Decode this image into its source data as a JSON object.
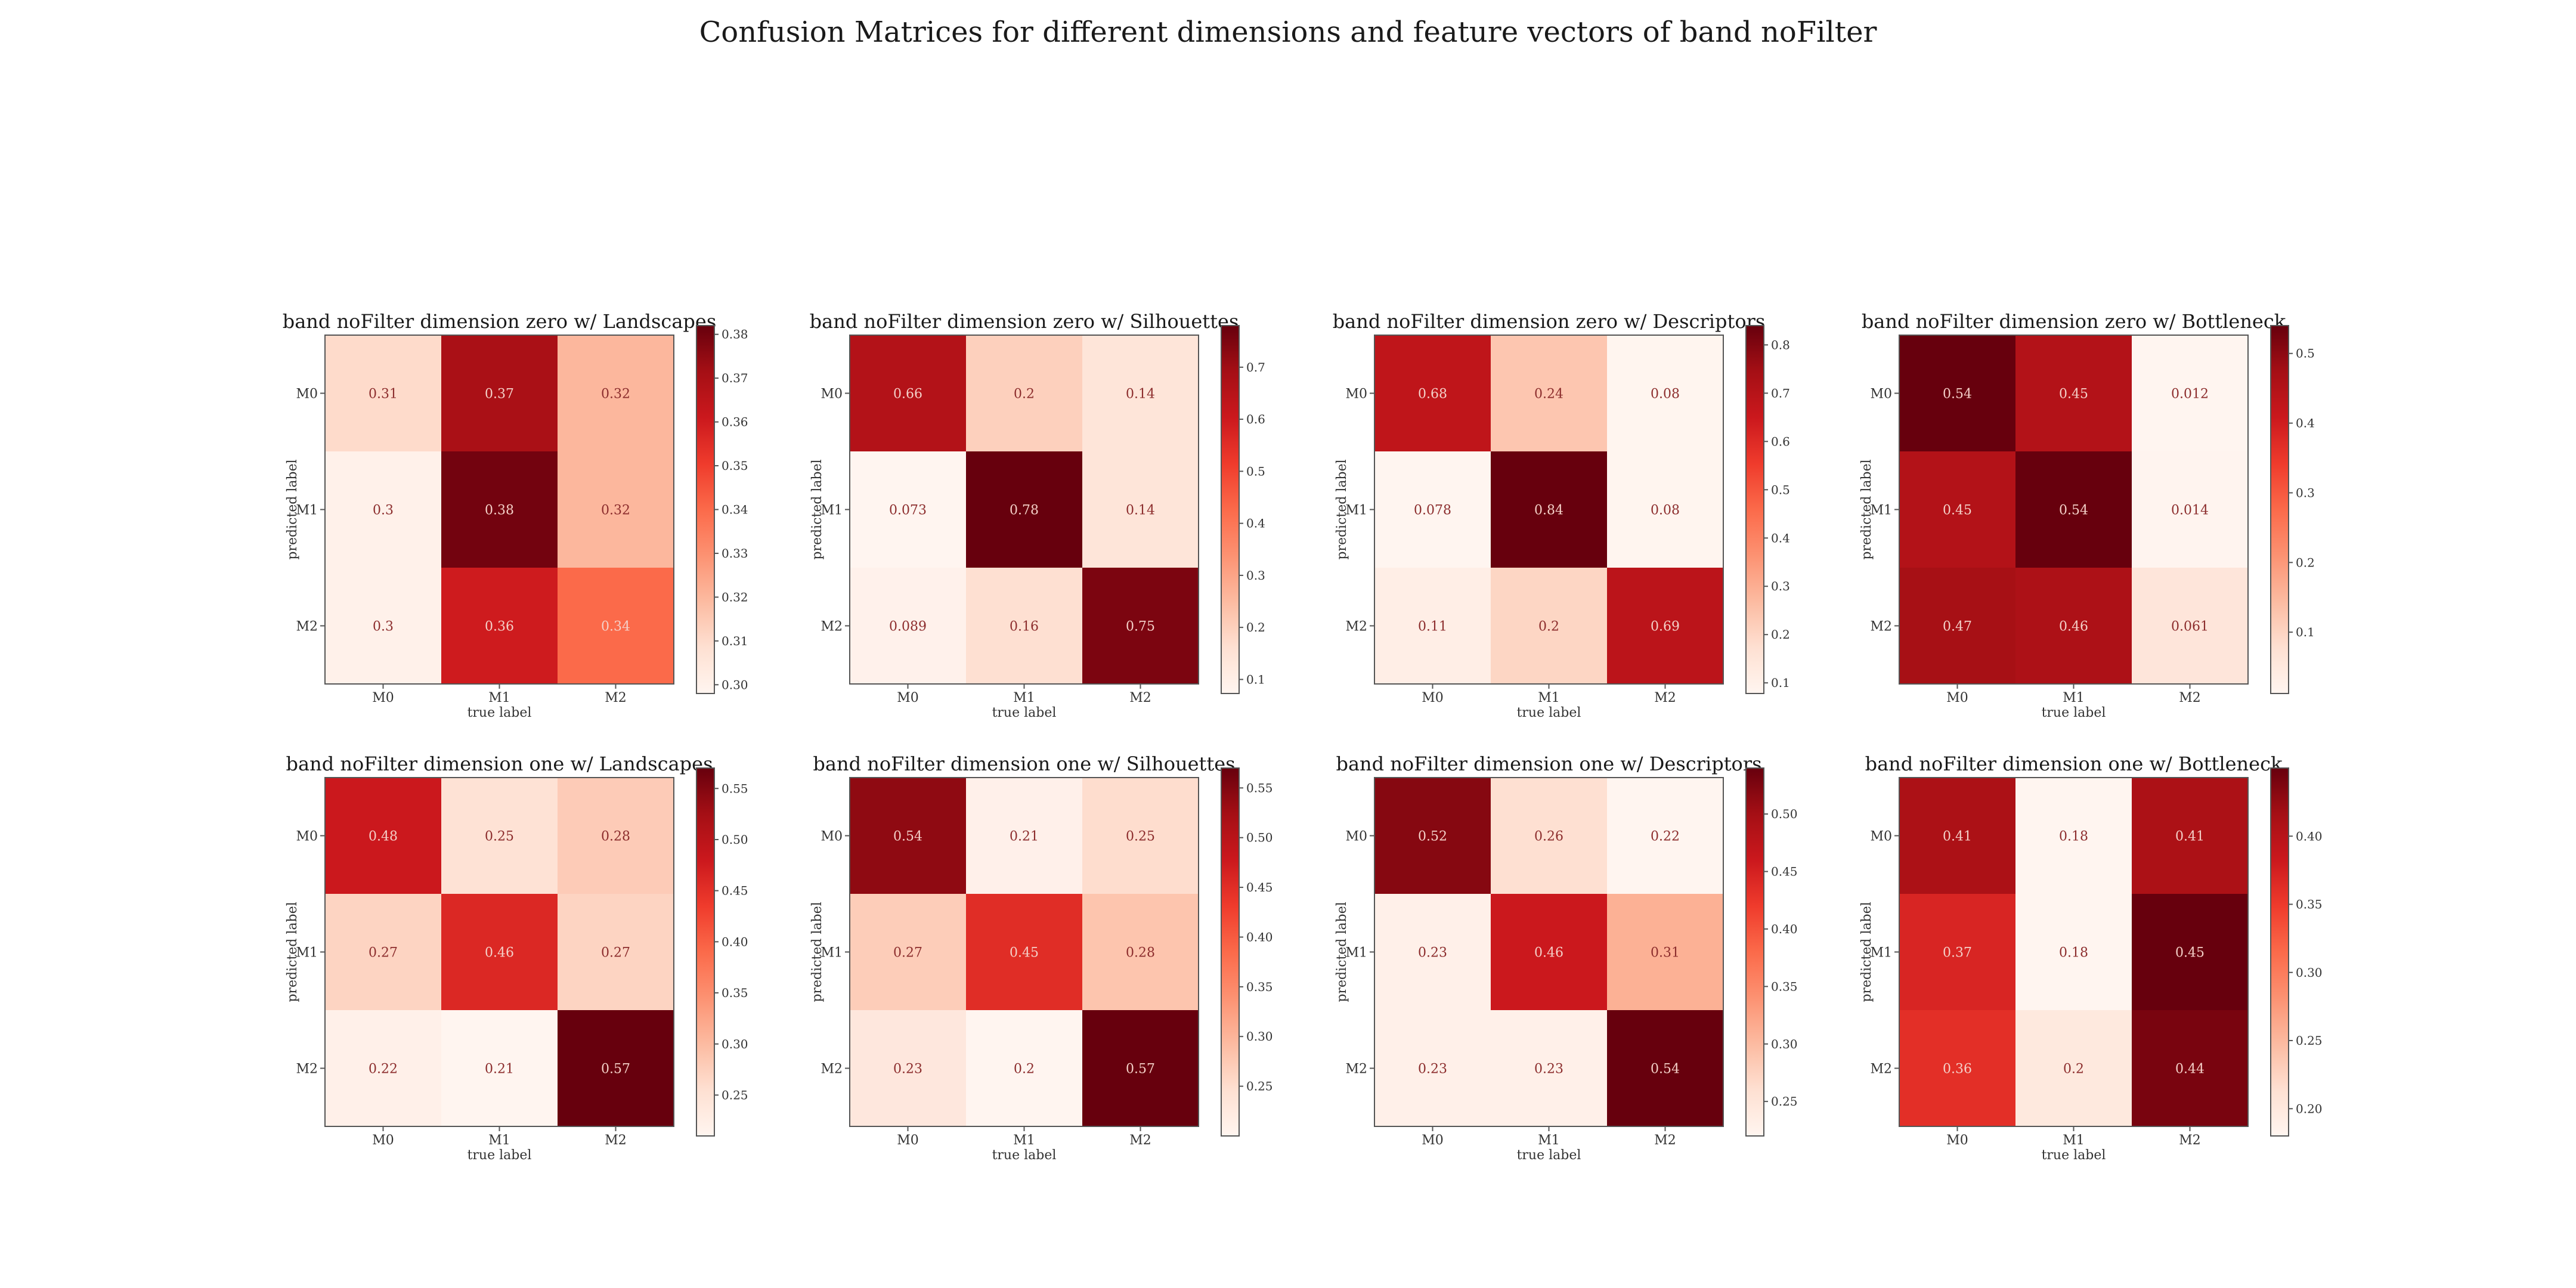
{
  "figure": {
    "suptitle": "Confusion Matrices for different dimensions and feature vectors of band noFilter"
  },
  "chart_data": [
    {
      "type": "heatmap",
      "title": "band noFilter dimension zero w/ Landscapes",
      "xlabel": "true label",
      "ylabel": "predicted label",
      "x_categories": [
        "M0",
        "M1",
        "M2"
      ],
      "y_categories": [
        "M0",
        "M1",
        "M2"
      ],
      "values": [
        [
          0.31,
          0.37,
          0.32
        ],
        [
          0.3,
          0.38,
          0.32
        ],
        [
          0.3,
          0.36,
          0.34
        ]
      ],
      "colorbar": {
        "ticks": [
          "0.30",
          "0.31",
          "0.32",
          "0.33",
          "0.34",
          "0.35",
          "0.36",
          "0.37",
          "0.38"
        ],
        "range": [
          0.298,
          0.382
        ]
      },
      "colormap": "Reds"
    },
    {
      "type": "heatmap",
      "title": "band noFilter dimension zero w/ Silhouettes",
      "xlabel": "true label",
      "ylabel": "predicted label",
      "x_categories": [
        "M0",
        "M1",
        "M2"
      ],
      "y_categories": [
        "M0",
        "M1",
        "M2"
      ],
      "values": [
        [
          0.66,
          0.2,
          0.14
        ],
        [
          0.073,
          0.78,
          0.14
        ],
        [
          0.089,
          0.16,
          0.75
        ]
      ],
      "colorbar": {
        "ticks": [
          "0.1",
          "0.2",
          "0.3",
          "0.4",
          "0.5",
          "0.6",
          "0.7"
        ],
        "range": [
          0.073,
          0.78
        ]
      },
      "colormap": "Reds"
    },
    {
      "type": "heatmap",
      "title": "band noFilter dimension zero w/ Descriptors",
      "xlabel": "true label",
      "ylabel": "predicted label",
      "x_categories": [
        "M0",
        "M1",
        "M2"
      ],
      "y_categories": [
        "M0",
        "M1",
        "M2"
      ],
      "values": [
        [
          0.68,
          0.24,
          0.08
        ],
        [
          0.078,
          0.84,
          0.08
        ],
        [
          0.11,
          0.2,
          0.69
        ]
      ],
      "colorbar": {
        "ticks": [
          "0.1",
          "0.2",
          "0.3",
          "0.4",
          "0.5",
          "0.6",
          "0.7",
          "0.8"
        ],
        "range": [
          0.078,
          0.84
        ]
      },
      "colormap": "Reds"
    },
    {
      "type": "heatmap",
      "title": "band noFilter dimension zero w/ Bottleneck",
      "xlabel": "true label",
      "ylabel": "predicted label",
      "x_categories": [
        "M0",
        "M1",
        "M2"
      ],
      "y_categories": [
        "M0",
        "M1",
        "M2"
      ],
      "values": [
        [
          0.54,
          0.45,
          0.012
        ],
        [
          0.45,
          0.54,
          0.014
        ],
        [
          0.47,
          0.46,
          0.061
        ]
      ],
      "colorbar": {
        "ticks": [
          "0.1",
          "0.2",
          "0.3",
          "0.4",
          "0.5"
        ],
        "range": [
          0.012,
          0.54
        ]
      },
      "colormap": "Reds"
    },
    {
      "type": "heatmap",
      "title": "band noFilter dimension one w/ Landscapes",
      "xlabel": "true label",
      "ylabel": "predicted label",
      "x_categories": [
        "M0",
        "M1",
        "M2"
      ],
      "y_categories": [
        "M0",
        "M1",
        "M2"
      ],
      "values": [
        [
          0.48,
          0.25,
          0.28
        ],
        [
          0.27,
          0.46,
          0.27
        ],
        [
          0.22,
          0.21,
          0.57
        ]
      ],
      "colorbar": {
        "ticks": [
          "0.25",
          "0.30",
          "0.35",
          "0.40",
          "0.45",
          "0.50",
          "0.55"
        ],
        "range": [
          0.21,
          0.57
        ]
      },
      "colormap": "Reds"
    },
    {
      "type": "heatmap",
      "title": "band noFilter dimension one w/ Silhouettes",
      "xlabel": "true label",
      "ylabel": "predicted label",
      "x_categories": [
        "M0",
        "M1",
        "M2"
      ],
      "y_categories": [
        "M0",
        "M1",
        "M2"
      ],
      "values": [
        [
          0.54,
          0.21,
          0.25
        ],
        [
          0.27,
          0.45,
          0.28
        ],
        [
          0.23,
          0.2,
          0.57
        ]
      ],
      "colorbar": {
        "ticks": [
          "0.25",
          "0.30",
          "0.35",
          "0.40",
          "0.45",
          "0.50",
          "0.55"
        ],
        "range": [
          0.2,
          0.57
        ]
      },
      "colormap": "Reds"
    },
    {
      "type": "heatmap",
      "title": "band noFilter dimension one w/ Descriptors",
      "xlabel": "true label",
      "ylabel": "predicted label",
      "x_categories": [
        "M0",
        "M1",
        "M2"
      ],
      "y_categories": [
        "M0",
        "M1",
        "M2"
      ],
      "values": [
        [
          0.52,
          0.26,
          0.22
        ],
        [
          0.23,
          0.46,
          0.31
        ],
        [
          0.23,
          0.23,
          0.54
        ]
      ],
      "colorbar": {
        "ticks": [
          "0.25",
          "0.30",
          "0.35",
          "0.40",
          "0.45",
          "0.50"
        ],
        "range": [
          0.22,
          0.54
        ]
      },
      "colormap": "Reds"
    },
    {
      "type": "heatmap",
      "title": "band noFilter dimension one w/ Bottleneck",
      "xlabel": "true label",
      "ylabel": "predicted label",
      "x_categories": [
        "M0",
        "M1",
        "M2"
      ],
      "y_categories": [
        "M0",
        "M1",
        "M2"
      ],
      "values": [
        [
          0.41,
          0.18,
          0.41
        ],
        [
          0.37,
          0.18,
          0.45
        ],
        [
          0.36,
          0.2,
          0.44
        ]
      ],
      "colorbar": {
        "ticks": [
          "0.20",
          "0.25",
          "0.30",
          "0.35",
          "0.40"
        ],
        "range": [
          0.18,
          0.45
        ]
      },
      "colormap": "Reds"
    }
  ]
}
